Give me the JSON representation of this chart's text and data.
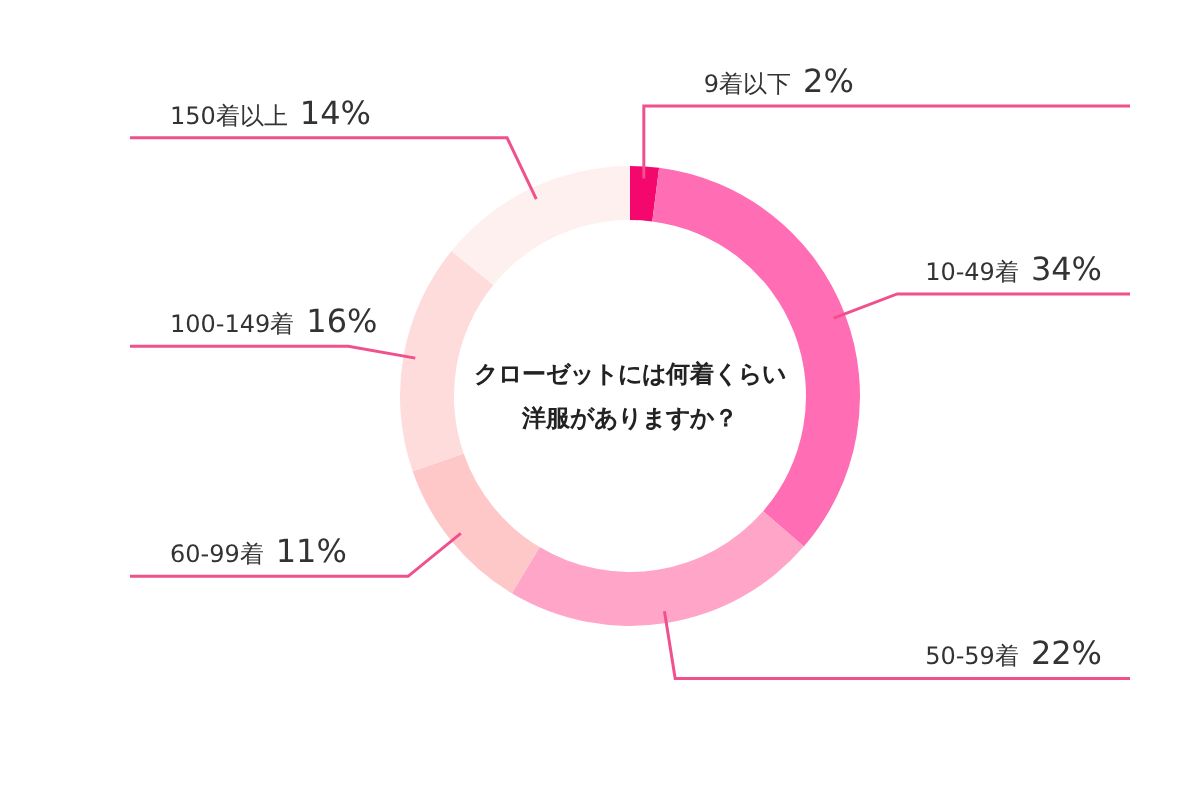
{
  "chart_data": {
    "type": "donut",
    "title": "クローゼットには何着くらい洋服がありますか？",
    "categories": [
      "9着以下",
      "10-49着",
      "50-59着",
      "60-99着",
      "100-149着",
      "150着以上"
    ],
    "values": [
      2,
      34,
      22,
      11,
      16,
      14
    ],
    "value_labels": [
      "2%",
      "34%",
      "22%",
      "11%",
      "16%",
      "14%"
    ],
    "colors": [
      "#f5086e",
      "#ff6eb4",
      "#ffa5c8",
      "#ffc8c8",
      "#ffdcdc",
      "#fff0f0"
    ]
  }
}
